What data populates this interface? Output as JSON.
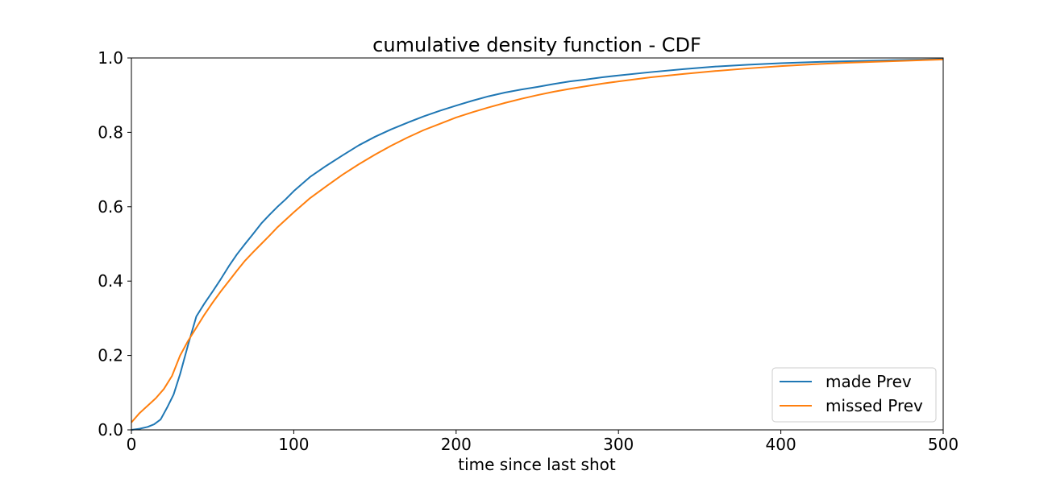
{
  "chart_data": {
    "type": "line",
    "title": "cumulative density function - CDF",
    "xlabel": "time since last shot",
    "ylabel": "",
    "xlim": [
      0,
      500
    ],
    "ylim": [
      0,
      1.0
    ],
    "xticks": [
      0,
      100,
      200,
      300,
      400,
      500
    ],
    "xtick_labels": [
      "0",
      "100",
      "200",
      "300",
      "400",
      "500"
    ],
    "yticks": [
      0.0,
      0.2,
      0.4,
      0.6,
      0.8,
      1.0
    ],
    "ytick_labels": [
      "0.0",
      "0.2",
      "0.4",
      "0.6",
      "0.8",
      "1.0"
    ],
    "grid": false,
    "legend_position": "lower-right",
    "series": [
      {
        "name": "made Prev",
        "color": "#1f77b4",
        "x": [
          0,
          5,
          10,
          14,
          18,
          22,
          26,
          30,
          35,
          40,
          45,
          50,
          55,
          60,
          65,
          70,
          75,
          80,
          85,
          90,
          95,
          100,
          110,
          120,
          130,
          140,
          150,
          160,
          170,
          180,
          190,
          200,
          210,
          220,
          230,
          240,
          250,
          260,
          270,
          280,
          290,
          300,
          320,
          340,
          360,
          380,
          400,
          420,
          440,
          460,
          480,
          500
        ],
        "y": [
          0.0,
          0.003,
          0.008,
          0.015,
          0.028,
          0.06,
          0.095,
          0.15,
          0.23,
          0.305,
          0.34,
          0.372,
          0.405,
          0.44,
          0.472,
          0.5,
          0.527,
          0.555,
          0.578,
          0.6,
          0.62,
          0.642,
          0.68,
          0.71,
          0.738,
          0.765,
          0.788,
          0.808,
          0.826,
          0.843,
          0.858,
          0.872,
          0.885,
          0.897,
          0.907,
          0.915,
          0.922,
          0.93,
          0.937,
          0.942,
          0.948,
          0.953,
          0.962,
          0.97,
          0.977,
          0.982,
          0.986,
          0.989,
          0.991,
          0.993,
          0.995,
          0.997
        ]
      },
      {
        "name": "missed Prev",
        "color": "#ff7f0e",
        "x": [
          0,
          5,
          10,
          15,
          20,
          25,
          30,
          35,
          40,
          45,
          50,
          55,
          60,
          65,
          70,
          75,
          80,
          85,
          90,
          95,
          100,
          110,
          120,
          130,
          140,
          150,
          160,
          170,
          180,
          190,
          200,
          210,
          220,
          230,
          240,
          250,
          260,
          270,
          280,
          290,
          300,
          320,
          340,
          360,
          380,
          400,
          420,
          440,
          460,
          480,
          500
        ],
        "y": [
          0.02,
          0.045,
          0.065,
          0.085,
          0.11,
          0.145,
          0.2,
          0.24,
          0.275,
          0.31,
          0.342,
          0.372,
          0.4,
          0.428,
          0.455,
          0.478,
          0.5,
          0.522,
          0.545,
          0.565,
          0.585,
          0.623,
          0.655,
          0.686,
          0.714,
          0.74,
          0.764,
          0.786,
          0.806,
          0.823,
          0.84,
          0.854,
          0.867,
          0.879,
          0.89,
          0.9,
          0.909,
          0.917,
          0.924,
          0.931,
          0.937,
          0.948,
          0.957,
          0.965,
          0.972,
          0.978,
          0.983,
          0.987,
          0.99,
          0.993,
          0.996
        ]
      }
    ]
  }
}
